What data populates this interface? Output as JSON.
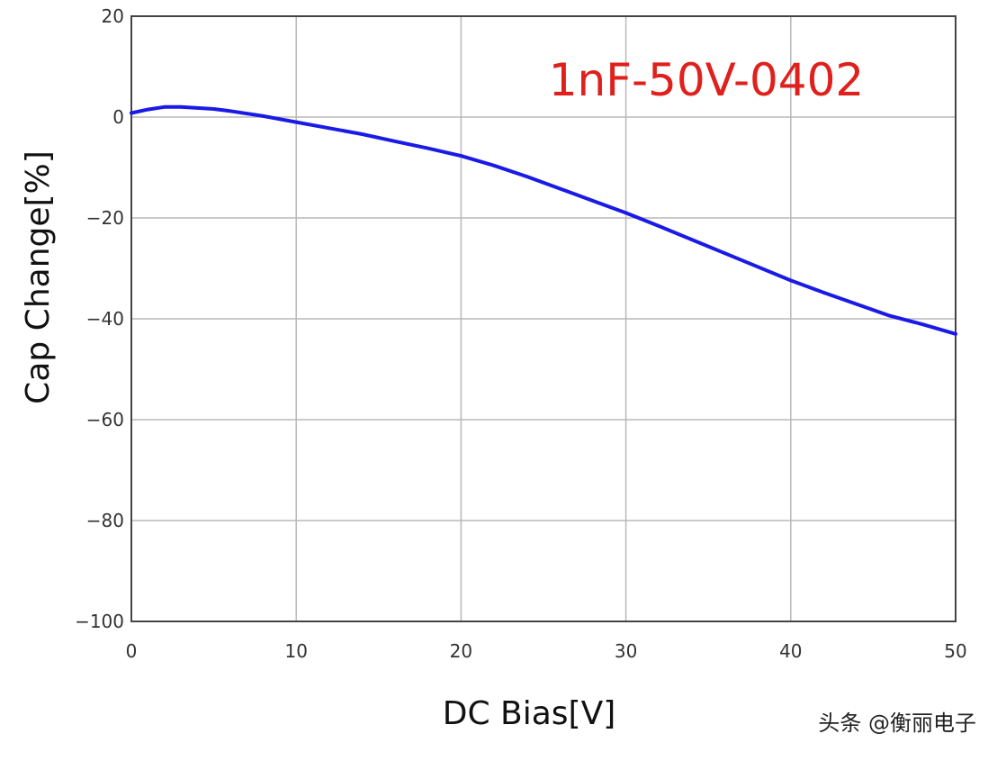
{
  "chart_data": {
    "type": "line",
    "title": "",
    "xlabel": "DC Bias[V]",
    "ylabel": "Cap Change[%]",
    "xlim": [
      0,
      50
    ],
    "ylim": [
      -100,
      20
    ],
    "x_ticks": [
      0,
      10,
      20,
      30,
      40,
      50
    ],
    "y_ticks": [
      20,
      0,
      -20,
      -40,
      -60,
      -80,
      -100
    ],
    "x_tick_labels": [
      "0",
      "10",
      "20",
      "30",
      "40",
      "50"
    ],
    "y_tick_labels": [
      "20",
      "0",
      "−20",
      "−40",
      "−60",
      "−80",
      "−100"
    ],
    "grid": true,
    "annotation": "1nF-50V-0402",
    "series": [
      {
        "color": "#1a1ae6",
        "x": [
          0,
          1,
          2,
          3,
          4,
          5,
          6,
          8,
          10,
          12,
          14,
          16,
          18,
          20,
          22,
          24,
          26,
          28,
          30,
          32,
          34,
          36,
          38,
          40,
          42,
          44,
          46,
          48,
          50
        ],
        "y": [
          0.8,
          1.5,
          2.0,
          2.0,
          1.8,
          1.6,
          1.2,
          0.2,
          -1.0,
          -2.2,
          -3.4,
          -4.8,
          -6.2,
          -7.7,
          -9.6,
          -11.8,
          -14.2,
          -16.6,
          -19.0,
          -21.6,
          -24.3,
          -27.0,
          -29.7,
          -32.4,
          -34.8,
          -37.1,
          -39.4,
          -41.1,
          -43.0
        ]
      }
    ]
  },
  "watermark": "头条 @衡丽电子"
}
